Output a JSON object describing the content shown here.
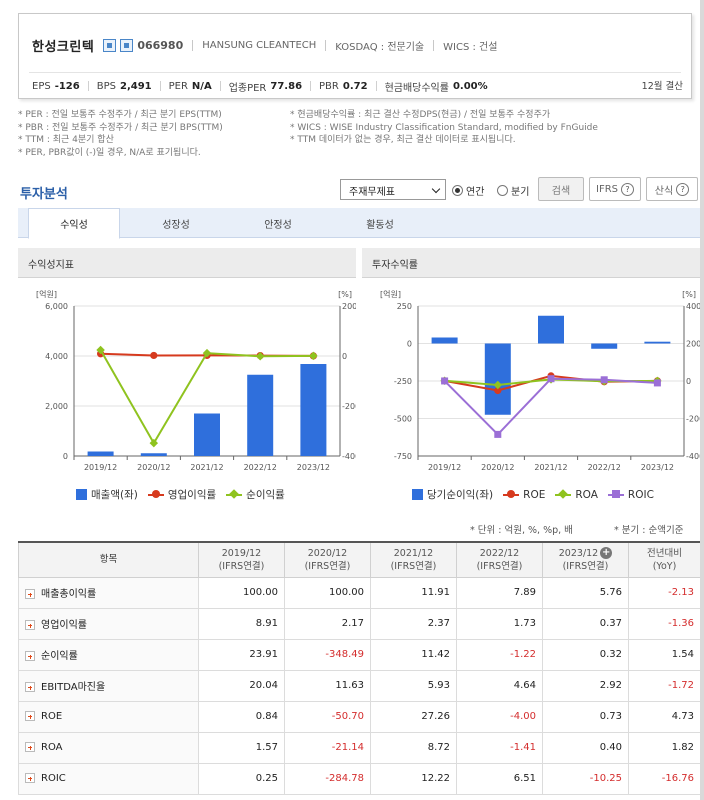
{
  "company": {
    "name": "한성크린텍",
    "code": "066980",
    "english_name": "HANSUNG CLEANTECH",
    "market": "KOSDAQ : 전문기술",
    "wics": "WICS : 건설",
    "icon_names": [
      "home-icon",
      "building-icon"
    ]
  },
  "stats": [
    {
      "label": "EPS",
      "value": "-126"
    },
    {
      "label": "BPS",
      "value": "2,491"
    },
    {
      "label": "PER",
      "value": "N/A"
    },
    {
      "label": "업종PER",
      "value": "77.86"
    },
    {
      "label": "PBR",
      "value": "0.72"
    },
    {
      "label": "현금배당수익률",
      "value": "0.00%"
    }
  ],
  "settlement": "12월 결산",
  "notes_left": [
    "* PER : 전일 보통주 수정주가 / 최근 분기 EPS(TTM)",
    "* PBR : 전일 보통주 수정주가 / 최근 분기 BPS(TTM)",
    "* TTM : 최근 4분기 합산",
    "* PER, PBR값이 (-)일 경우, N/A로 표기됩니다."
  ],
  "notes_right": [
    "* 현금배당수익률 : 최근 결산 수정DPS(현금) / 전일 보통주 수정주가",
    "* WICS : WISE Industry Classification Standard, modified by FnGuide",
    "* TTM 데이터가 없는 경우, 최근 결산 데이터로 표시됩니다."
  ],
  "analysis": {
    "title": "투자분석",
    "select_value": "주재무제표",
    "radio_annual": "연간",
    "radio_quarter": "분기",
    "search_label": "검색",
    "ifrs_label": "IFRS",
    "formula_label": "산식",
    "help_glyph": "?"
  },
  "tabs": [
    "수익성",
    "성장성",
    "안정성",
    "활동성"
  ],
  "panels": {
    "left_title": "수익성지표",
    "right_title": "투자수익률"
  },
  "chart_data": [
    {
      "type": "bar",
      "title": "수익성지표",
      "categories": [
        "2019/12",
        "2020/12",
        "2021/12",
        "2022/12",
        "2023/12"
      ],
      "y_left_unit": "[억원]",
      "y_right_unit": "[%]",
      "y_left_ticks": [
        "6,000",
        "4,000",
        "2,000",
        "0"
      ],
      "y_right_ticks": [
        "200",
        "0",
        "-200",
        "-400"
      ],
      "ylim_left": [
        0,
        6000
      ],
      "ylim_right": [
        -400,
        200
      ],
      "series": [
        {
          "name": "매출액(좌)",
          "type": "bar",
          "axis": "left",
          "color": "#2f6fdc",
          "values": [
            180,
            110,
            1700,
            3250,
            3680
          ]
        },
        {
          "name": "영업이익률",
          "type": "line",
          "axis": "right",
          "color": "#d63a1e",
          "marker": "circle",
          "values": [
            8.91,
            2.17,
            2.37,
            1.73,
            0.37
          ]
        },
        {
          "name": "순이익률",
          "type": "line",
          "axis": "right",
          "color": "#8fc31f",
          "marker": "diamond",
          "values": [
            23.91,
            -348.49,
            11.42,
            -1.22,
            0.32
          ]
        }
      ],
      "legend": "bottom"
    },
    {
      "type": "bar",
      "title": "투자수익률",
      "categories": [
        "2019/12",
        "2020/12",
        "2021/12",
        "2022/12",
        "2023/12"
      ],
      "y_left_unit": "[억원]",
      "y_right_unit": "[%]",
      "y_left_ticks": [
        "250",
        "0",
        "-250",
        "-500",
        "-750"
      ],
      "y_right_ticks": [
        "400",
        "200",
        "0",
        "-200",
        "-400"
      ],
      "ylim_left": [
        -750,
        250
      ],
      "ylim_right": [
        -400,
        400
      ],
      "series": [
        {
          "name": "당기순이익(좌)",
          "type": "bar",
          "axis": "left",
          "color": "#2f6fdc",
          "values": [
            40,
            -475,
            185,
            -35,
            12
          ]
        },
        {
          "name": "ROE",
          "type": "line",
          "axis": "right",
          "color": "#d63a1e",
          "marker": "circle",
          "values": [
            0.84,
            -50.7,
            27.26,
            -4.0,
            0.73
          ]
        },
        {
          "name": "ROA",
          "type": "line",
          "axis": "right",
          "color": "#8fc31f",
          "marker": "diamond",
          "values": [
            1.57,
            -21.14,
            8.72,
            -1.41,
            0.4
          ]
        },
        {
          "name": "ROIC",
          "type": "line",
          "axis": "right",
          "color": "#9b6fd6",
          "marker": "square",
          "values": [
            0.25,
            -284.78,
            12.22,
            6.51,
            -10.25
          ]
        }
      ],
      "legend": "bottom"
    }
  ],
  "unit_note": "* 단위 : 억원, %, %p, 배",
  "quarter_note": "* 분기 : 순액기준",
  "table": {
    "header_item": "항목",
    "columns": [
      {
        "year": "2019/12",
        "basis": "(IFRS연결)"
      },
      {
        "year": "2020/12",
        "basis": "(IFRS연결)"
      },
      {
        "year": "2021/12",
        "basis": "(IFRS연결)"
      },
      {
        "year": "2022/12",
        "basis": "(IFRS연결)"
      },
      {
        "year": "2023/12",
        "basis": "(IFRS연결)"
      },
      {
        "year": "전년대비",
        "basis": "(YoY)"
      }
    ],
    "rows": [
      {
        "label": "매출총이익률",
        "values": [
          "100.00",
          "100.00",
          "11.91",
          "7.89",
          "5.76",
          "-2.13"
        ]
      },
      {
        "label": "영업이익률",
        "values": [
          "8.91",
          "2.17",
          "2.37",
          "1.73",
          "0.37",
          "-1.36"
        ]
      },
      {
        "label": "순이익률",
        "values": [
          "23.91",
          "-348.49",
          "11.42",
          "-1.22",
          "0.32",
          "1.54"
        ]
      },
      {
        "label": "EBITDA마진율",
        "values": [
          "20.04",
          "11.63",
          "5.93",
          "4.64",
          "2.92",
          "-1.72"
        ]
      },
      {
        "label": "ROE",
        "values": [
          "0.84",
          "-50.70",
          "27.26",
          "-4.00",
          "0.73",
          "4.73"
        ]
      },
      {
        "label": "ROA",
        "values": [
          "1.57",
          "-21.14",
          "8.72",
          "-1.41",
          "0.40",
          "1.82"
        ]
      },
      {
        "label": "ROIC",
        "values": [
          "0.25",
          "-284.78",
          "12.22",
          "6.51",
          "-10.25",
          "-16.76"
        ]
      }
    ]
  }
}
